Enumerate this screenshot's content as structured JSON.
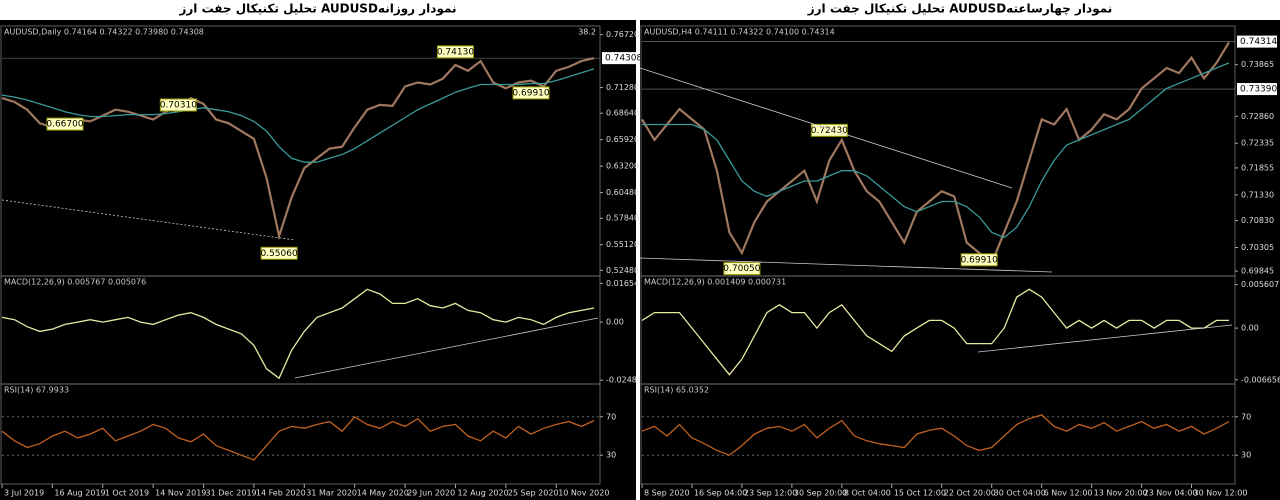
{
  "chart_data": [
    {
      "type": "line",
      "title": "تحلیل تکنیکال جفت ارز  AUDUSDنمودار روزانه",
      "xlim": [
        0,
        47
      ],
      "xticks": [
        {
          "value": 0,
          "label": "3 Jul 2019"
        },
        {
          "value": 4,
          "label": "16 Aug 2019"
        },
        {
          "value": 8,
          "label": "1 Oct 2019"
        },
        {
          "value": 12,
          "label": "14 Nov 2019"
        },
        {
          "value": 16,
          "label": "31 Dec 2019"
        },
        {
          "value": 20,
          "label": "14 Feb 2020"
        },
        {
          "value": 24,
          "label": "31 Mar 2020"
        },
        {
          "value": 28,
          "label": "14 May 2020"
        },
        {
          "value": 32,
          "label": "29 Jun 2020"
        },
        {
          "value": 36,
          "label": "12 Aug 2020"
        },
        {
          "value": 40,
          "label": "25 Sep 2020"
        },
        {
          "value": 44,
          "label": "10 Nov 2020"
        }
      ],
      "panels": [
        {
          "header": "AUDUSD,Daily  0.74164 0.74322 0.73980 0.74308",
          "fib_label": "38.2",
          "ylim": [
            0.519,
            0.772
          ],
          "yticks": [
            {
              "value": 0.7672,
              "label": "0.76720"
            },
            {
              "value": 0.7128,
              "label": "0.71280"
            },
            {
              "value": 0.6864,
              "label": "0.68640"
            },
            {
              "value": 0.6592,
              "label": "0.65920"
            },
            {
              "value": 0.632,
              "label": "0.63200"
            },
            {
              "value": 0.6048,
              "label": "0.60480"
            },
            {
              "value": 0.5784,
              "label": "0.57840"
            },
            {
              "value": 0.5512,
              "label": "0.55120"
            },
            {
              "value": 0.5248,
              "label": "0.52480"
            }
          ],
          "price_marks": [
            {
              "value": 0.74308,
              "label": "0.74308"
            }
          ],
          "annotations": [
            "0.74130",
            "0.70310",
            "0.66700",
            "0.55060",
            "0.69910"
          ],
          "series": [
            {
              "color": "#a07860",
              "values": [
                0.702,
                0.698,
                0.69,
                0.676,
                0.672,
                0.676,
                0.68,
                0.678,
                0.684,
                0.69,
                0.688,
                0.684,
                0.68,
                0.688,
                0.694,
                0.702,
                0.696,
                0.68,
                0.676,
                0.668,
                0.66,
                0.62,
                0.56,
                0.6,
                0.63,
                0.64,
                0.65,
                0.652,
                0.672,
                0.69,
                0.695,
                0.694,
                0.714,
                0.718,
                0.716,
                0.722,
                0.736,
                0.73,
                0.74,
                0.718,
                0.712,
                0.718,
                0.72,
                0.714,
                0.73,
                0.734,
                0.74,
                0.743
              ]
            },
            {
              "color": "#3a9a9a",
              "values": [
                0.705,
                0.703,
                0.7,
                0.696,
                0.692,
                0.688,
                0.685,
                0.683,
                0.683,
                0.684,
                0.685,
                0.685,
                0.685,
                0.686,
                0.688,
                0.69,
                0.692,
                0.69,
                0.688,
                0.684,
                0.678,
                0.668,
                0.652,
                0.64,
                0.636,
                0.636,
                0.64,
                0.644,
                0.65,
                0.658,
                0.666,
                0.674,
                0.682,
                0.69,
                0.696,
                0.702,
                0.708,
                0.712,
                0.716,
                0.716,
                0.716,
                0.716,
                0.717,
                0.717,
                0.72,
                0.724,
                0.728,
                0.732
              ]
            }
          ]
        },
        {
          "header": "MACD(12,26,9) 0.005767 0.005076",
          "ylim": [
            -0.0265,
            0.018
          ],
          "yticks": [
            0.01654,
            {
              "value": 0,
              "label": "0.00"
            },
            -0.02486
          ],
          "series": [
            {
              "color": "#e8e8a0",
              "values": [
                0.002,
                0.001,
                -0.002,
                -0.004,
                -0.003,
                -0.001,
                0.0,
                0.001,
                0.0,
                0.001,
                0.002,
                0.0,
                -0.001,
                0.001,
                0.003,
                0.004,
                0.002,
                -0.001,
                -0.003,
                -0.005,
                -0.01,
                -0.02,
                -0.024,
                -0.012,
                -0.004,
                0.002,
                0.004,
                0.006,
                0.01,
                0.014,
                0.012,
                0.008,
                0.008,
                0.01,
                0.007,
                0.006,
                0.008,
                0.005,
                0.004,
                0.001,
                0.0,
                0.002,
                0.001,
                -0.001,
                0.002,
                0.004,
                0.005,
                0.006
              ]
            }
          ]
        },
        {
          "header": "RSI(14) 67.9933",
          "ylim": [
            0,
            100
          ],
          "yticks": [
            70,
            30
          ],
          "series": [
            {
              "color": "#c06020",
              "values": [
                55,
                45,
                38,
                42,
                50,
                55,
                48,
                52,
                58,
                45,
                50,
                55,
                62,
                58,
                48,
                44,
                52,
                40,
                35,
                30,
                25,
                40,
                55,
                60,
                58,
                62,
                65,
                55,
                70,
                62,
                58,
                65,
                60,
                68,
                55,
                60,
                62,
                50,
                45,
                55,
                48,
                60,
                52,
                58,
                62,
                65,
                60,
                66
              ]
            }
          ]
        }
      ]
    },
    {
      "type": "line",
      "title": "تحلیل تکنیکال جفت ارز  AUDUSDنمودار چهارساعته",
      "xlim": [
        0,
        47
      ],
      "xticks": [
        {
          "value": 0,
          "label": "8 Sep 2020"
        },
        {
          "value": 4,
          "label": "16 Sep 04:00"
        },
        {
          "value": 8,
          "label": "23 Sep 12:00"
        },
        {
          "value": 12,
          "label": "30 Sep 20:00"
        },
        {
          "value": 16,
          "label": "8 Oct 04:00"
        },
        {
          "value": 20,
          "label": "15 Oct 12:00"
        },
        {
          "value": 24,
          "label": "22 Oct 20:00"
        },
        {
          "value": 28,
          "label": "30 Oct 04:00"
        },
        {
          "value": 32,
          "label": "6 Nov 12:00"
        },
        {
          "value": 36,
          "label": "13 Nov 20:00"
        },
        {
          "value": 40,
          "label": "23 Nov 04:00"
        },
        {
          "value": 44,
          "label": "30 Nov 12:00"
        }
      ],
      "panels": [
        {
          "header": "AUDUSD,H4  0.74111 0.74322 0.74100 0.74314",
          "ylim": [
            0.6975,
            0.7454
          ],
          "yticks": [
            0.73865,
            {
              "value": 0.7286,
              "label": "0.72860"
            },
            0.72335,
            0.71855,
            {
              "value": 0.7133,
              "label": "0.71330"
            },
            {
              "value": 0.7083,
              "label": "0.70830"
            },
            0.70305,
            0.69845
          ],
          "price_marks": [
            {
              "value": 0.74314,
              "label": "0.74314"
            },
            {
              "value": 0.7339,
              "label": "0.73390"
            }
          ],
          "annotations": [
            "0.72430",
            "0.70050",
            "0.69910"
          ],
          "series": [
            {
              "color": "#a07860",
              "values": [
                0.728,
                0.724,
                0.727,
                0.73,
                0.728,
                0.726,
                0.718,
                0.706,
                0.702,
                0.708,
                0.712,
                0.714,
                0.716,
                0.718,
                0.712,
                0.72,
                0.724,
                0.718,
                0.714,
                0.712,
                0.708,
                0.704,
                0.71,
                0.712,
                0.714,
                0.713,
                0.704,
                0.702,
                0.7,
                0.706,
                0.712,
                0.72,
                0.728,
                0.727,
                0.73,
                0.724,
                0.726,
                0.729,
                0.728,
                0.73,
                0.734,
                0.736,
                0.738,
                0.737,
                0.74,
                0.736,
                0.739,
                0.743
              ]
            },
            {
              "color": "#3a9a9a",
              "values": [
                0.727,
                0.727,
                0.727,
                0.727,
                0.727,
                0.726,
                0.724,
                0.72,
                0.716,
                0.714,
                0.713,
                0.714,
                0.715,
                0.716,
                0.716,
                0.717,
                0.718,
                0.718,
                0.717,
                0.715,
                0.713,
                0.711,
                0.71,
                0.711,
                0.712,
                0.712,
                0.711,
                0.709,
                0.706,
                0.705,
                0.707,
                0.711,
                0.716,
                0.72,
                0.723,
                0.724,
                0.725,
                0.726,
                0.727,
                0.728,
                0.73,
                0.732,
                0.734,
                0.735,
                0.736,
                0.737,
                0.738,
                0.739
              ]
            }
          ]
        },
        {
          "header": "MACD(12,26,9) 0.001409 0.000731",
          "ylim": [
            -0.0072,
            0.0062
          ],
          "yticks": [
            0.005607,
            {
              "value": 0,
              "label": "0.00"
            },
            -0.006656
          ],
          "series": [
            {
              "color": "#e8e8a0",
              "values": [
                0.001,
                0.002,
                0.002,
                0.002,
                0.0,
                -0.002,
                -0.004,
                -0.006,
                -0.004,
                -0.001,
                0.002,
                0.003,
                0.002,
                0.002,
                0.0,
                0.002,
                0.003,
                0.001,
                -0.001,
                -0.002,
                -0.003,
                -0.001,
                0.0,
                0.001,
                0.001,
                0.0,
                -0.002,
                -0.002,
                -0.002,
                0.0,
                0.004,
                0.005,
                0.004,
                0.002,
                0.0,
                0.001,
                0.0,
                0.001,
                0.0,
                0.001,
                0.001,
                0.0,
                0.001,
                0.001,
                0.0,
                0.0,
                0.001,
                0.001
              ]
            }
          ]
        },
        {
          "header": "RSI(14) 65.0352",
          "ylim": [
            0,
            100
          ],
          "yticks": [
            70,
            30
          ],
          "series": [
            {
              "color": "#c06020",
              "values": [
                55,
                60,
                50,
                62,
                48,
                42,
                35,
                30,
                40,
                52,
                58,
                60,
                55,
                62,
                48,
                58,
                66,
                50,
                45,
                42,
                40,
                38,
                52,
                56,
                58,
                50,
                40,
                35,
                38,
                50,
                62,
                68,
                72,
                60,
                55,
                62,
                58,
                64,
                55,
                60,
                65,
                58,
                62,
                55,
                60,
                52,
                58,
                65
              ]
            }
          ]
        }
      ]
    }
  ]
}
